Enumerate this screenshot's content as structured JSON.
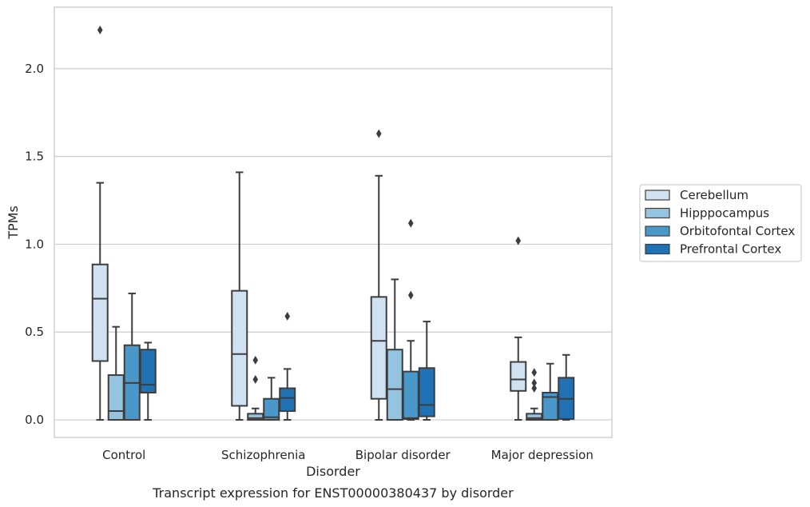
{
  "chart_data": {
    "type": "box",
    "caption": "Transcript expression for ENST00000380437 by disorder",
    "xlabel": "Disorder",
    "ylabel": "TPMs",
    "ylim": [
      -0.1,
      2.35
    ],
    "yticks": [
      0.0,
      0.5,
      1.0,
      1.5,
      2.0
    ],
    "ytick_labels": [
      "0.0",
      "0.5",
      "1.0",
      "1.5",
      "2.0"
    ],
    "grid": "horizontal",
    "legend_position": "right",
    "categories": [
      "Control",
      "Schizophrenia",
      "Bipolar disorder",
      "Major depression"
    ],
    "series": [
      {
        "name": "Cerebellum",
        "color": "#d0e1f2",
        "boxes": [
          {
            "whisker_low": 0.0,
            "q1": 0.335,
            "median": 0.69,
            "q3": 0.885,
            "whisker_high": 1.35,
            "outliers": [
              2.22
            ]
          },
          {
            "whisker_low": 0.0,
            "q1": 0.08,
            "median": 0.375,
            "q3": 0.735,
            "whisker_high": 1.41,
            "outliers": []
          },
          {
            "whisker_low": 0.0,
            "q1": 0.12,
            "median": 0.45,
            "q3": 0.7,
            "whisker_high": 1.39,
            "outliers": [
              1.63
            ]
          },
          {
            "whisker_low": 0.0,
            "q1": 0.165,
            "median": 0.23,
            "q3": 0.33,
            "whisker_high": 0.47,
            "outliers": [
              1.02
            ]
          }
        ]
      },
      {
        "name": "Hipppocampus",
        "color": "#94c4df",
        "boxes": [
          {
            "whisker_low": 0.0,
            "q1": 0.0,
            "median": 0.05,
            "q3": 0.255,
            "whisker_high": 0.53,
            "outliers": []
          },
          {
            "whisker_low": 0.0,
            "q1": 0.0,
            "median": 0.01,
            "q3": 0.035,
            "whisker_high": 0.065,
            "outliers": [
              0.23,
              0.34
            ]
          },
          {
            "whisker_low": 0.0,
            "q1": 0.0,
            "median": 0.175,
            "q3": 0.4,
            "whisker_high": 0.8,
            "outliers": []
          },
          {
            "whisker_low": 0.0,
            "q1": 0.0,
            "median": 0.01,
            "q3": 0.035,
            "whisker_high": 0.065,
            "outliers": [
              0.18,
              0.21,
              0.27
            ]
          }
        ]
      },
      {
        "name": "Orbitofontal Cortex",
        "color": "#4a98c9",
        "boxes": [
          {
            "whisker_low": 0.0,
            "q1": 0.0,
            "median": 0.21,
            "q3": 0.425,
            "whisker_high": 0.72,
            "outliers": []
          },
          {
            "whisker_low": 0.0,
            "q1": 0.0,
            "median": 0.015,
            "q3": 0.12,
            "whisker_high": 0.24,
            "outliers": []
          },
          {
            "whisker_low": 0.0,
            "q1": 0.005,
            "median": 0.01,
            "q3": 0.275,
            "whisker_high": 0.45,
            "outliers": [
              0.71,
              1.12
            ]
          },
          {
            "whisker_low": 0.0,
            "q1": 0.0,
            "median": 0.13,
            "q3": 0.155,
            "whisker_high": 0.32,
            "outliers": []
          }
        ]
      },
      {
        "name": "Prefrontal Cortex",
        "color": "#2171b5",
        "boxes": [
          {
            "whisker_low": 0.0,
            "q1": 0.155,
            "median": 0.2,
            "q3": 0.4,
            "whisker_high": 0.44,
            "outliers": []
          },
          {
            "whisker_low": 0.0,
            "q1": 0.05,
            "median": 0.125,
            "q3": 0.18,
            "whisker_high": 0.29,
            "outliers": [
              0.59
            ]
          },
          {
            "whisker_low": 0.0,
            "q1": 0.02,
            "median": 0.085,
            "q3": 0.295,
            "whisker_high": 0.56,
            "outliers": []
          },
          {
            "whisker_low": 0.0,
            "q1": 0.005,
            "median": 0.12,
            "q3": 0.24,
            "whisker_high": 0.37,
            "outliers": []
          }
        ]
      }
    ]
  }
}
